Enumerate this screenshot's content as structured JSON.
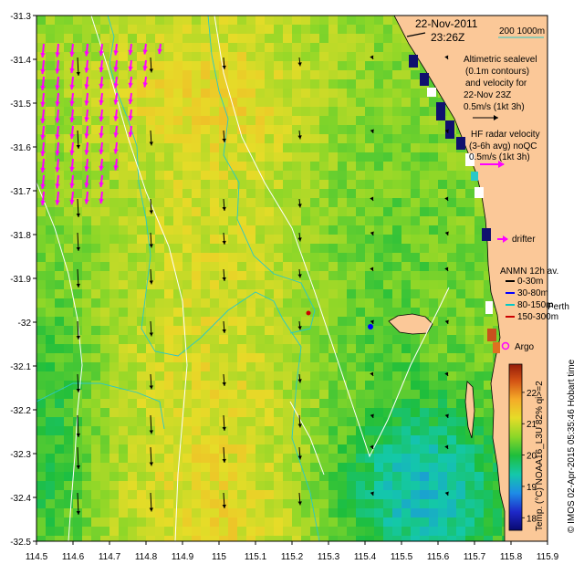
{
  "header": {
    "date": "22-Nov-2011",
    "time": "23:26Z"
  },
  "scale_legend": {
    "depth_label": "200  1000m"
  },
  "altimetry_legend": {
    "lines": [
      "Altimetric sealevel",
      "(0.1m contours)",
      "and velocity for",
      "22-Nov 23Z"
    ],
    "scale": "0.5m/s (1kt 3h)"
  },
  "hf_radar_legend": {
    "lines": [
      "HF radar velocity",
      "(3-6h avg) noQC"
    ],
    "scale": "0.5m/s (1kt 3h)"
  },
  "drifter_legend": {
    "label": "drifter"
  },
  "anmn_legend": {
    "title": "ANMN 12h av.",
    "items": [
      {
        "label": "0-30m",
        "color": "#000000"
      },
      {
        "label": "30-80m",
        "color": "#0000ff"
      },
      {
        "label": "80-150m",
        "color": "#00c8c8"
      },
      {
        "label": "150-300m",
        "color": "#cc0000"
      }
    ]
  },
  "place_label": "Perth",
  "argo_legend": {
    "label": "Argo"
  },
  "colorbar": {
    "title": "Temp. (°C) NOAA16_L3U 82% qi>=2",
    "ticks": [
      "18",
      "19",
      "20",
      "21",
      "22"
    ],
    "range": [
      17.6,
      22.9
    ]
  },
  "credit": "© IMOS 02-Apr-2015 05:35:46 Hobart time",
  "axes": {
    "x_ticks": [
      "114.5",
      "114.6",
      "114.7",
      "114.8",
      "114.9",
      "115",
      "115.1",
      "115.2",
      "115.3",
      "115.4",
      "115.5",
      "115.6",
      "115.7",
      "115.8",
      "115.9"
    ],
    "y_ticks": [
      "-31.3",
      "-31.4",
      "-31.5",
      "-31.6",
      "-31.7",
      "-31.8",
      "-31.9",
      "-32",
      "-32.1",
      "-32.2",
      "-32.3",
      "-32.4",
      "-32.5"
    ],
    "lon_range": [
      114.5,
      115.9
    ],
    "lat_range": [
      -32.5,
      -31.3
    ]
  },
  "colors": {
    "land": "#fbc898",
    "altimetry_arrow": "#000000",
    "hf_radar_arrow": "#ff00ff",
    "contour": "#28c8c8",
    "sealevel_contour": "#ffffff",
    "argo": "#ff00ff"
  }
}
